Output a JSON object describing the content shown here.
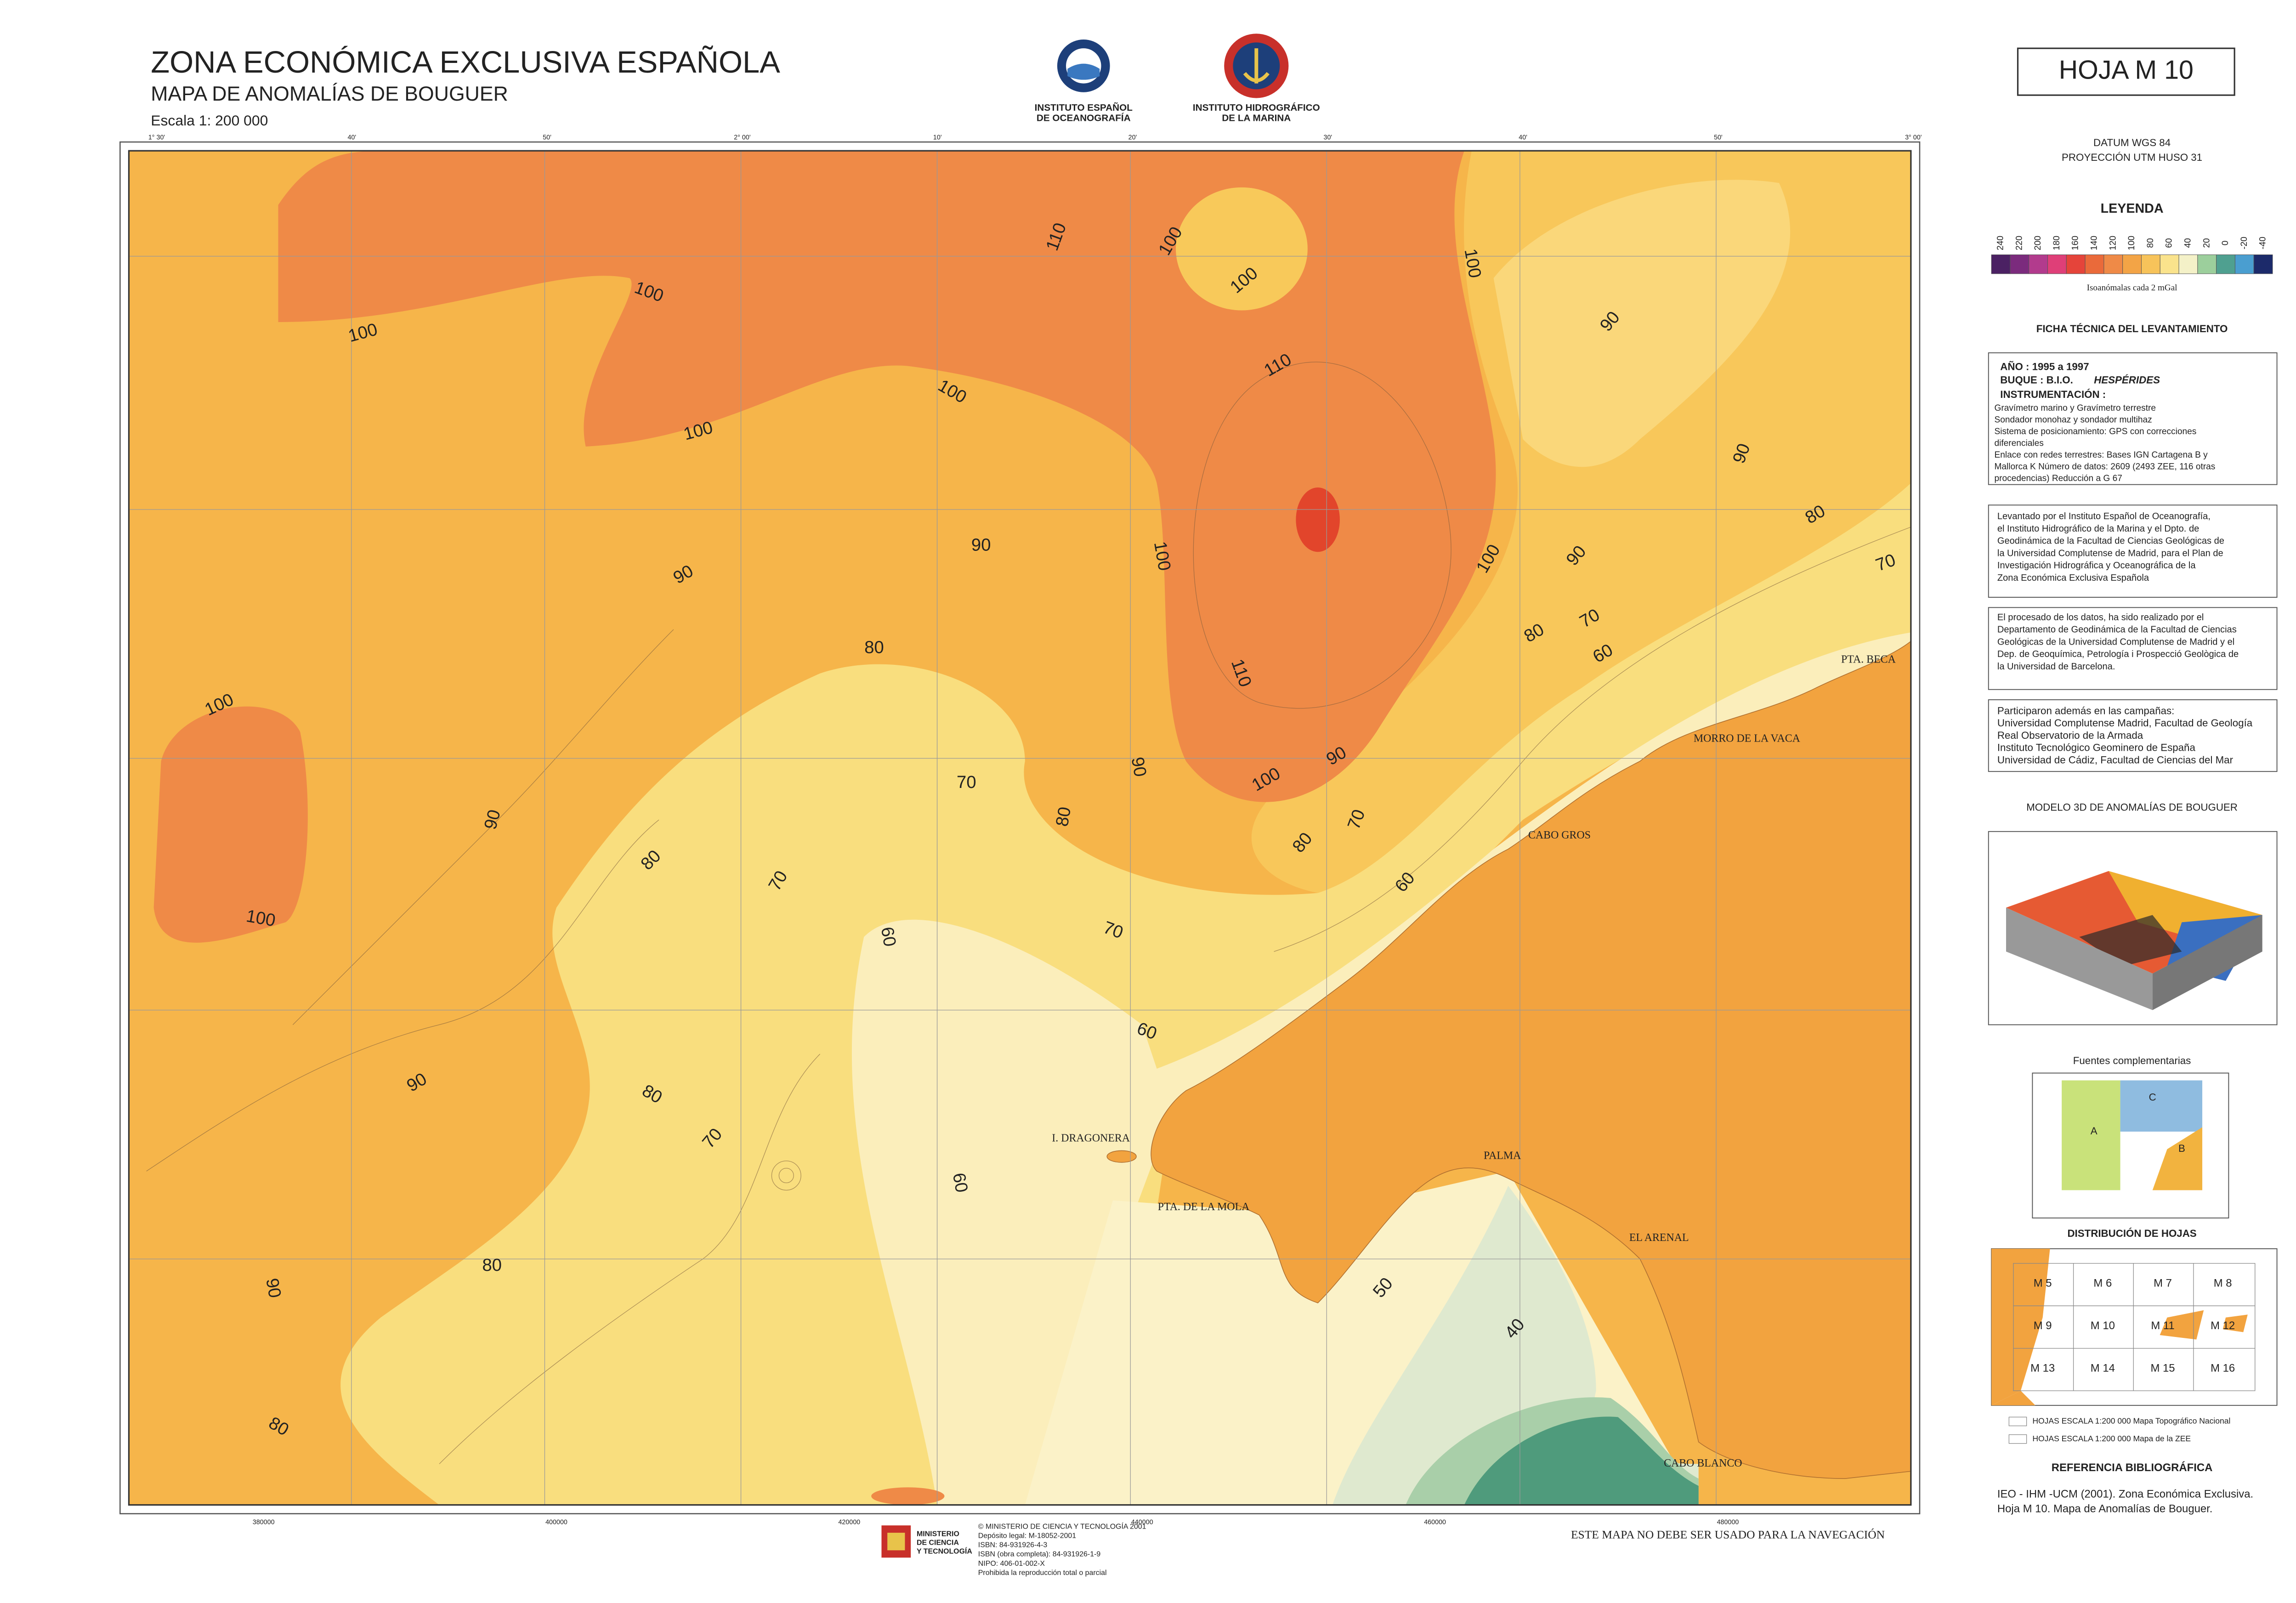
{
  "header": {
    "title": "ZONA ECONÓMICA EXCLUSIVA ESPAÑOLA",
    "subtitle": "MAPA DE ANOMALÍAS DE BOUGUER",
    "scale": "Escala 1: 200 000",
    "institutions": [
      [
        "INSTITUTO ESPAÑOL",
        "DE OCEANOGRAFÍA"
      ],
      [
        "INSTITUTO HIDROGRÁFICO",
        "DE LA MARINA"
      ]
    ]
  },
  "sheet": "HOJA M 10",
  "datum": "DATUM WGS 84",
  "projection": "PROYECCIÓN UTM HUSO 31",
  "legend": {
    "title": "LEYENDA",
    "classes": [
      {
        "label": 240,
        "color": "#4b2163"
      },
      {
        "label": 220,
        "color": "#7b2b7d"
      },
      {
        "label": 200,
        "color": "#b23b8d"
      },
      {
        "label": 180,
        "color": "#df3f78"
      },
      {
        "label": 160,
        "color": "#e5443a"
      },
      {
        "label": 140,
        "color": "#ea6a3a"
      },
      {
        "label": 120,
        "color": "#ef8a47"
      },
      {
        "label": 100,
        "color": "#f3a446"
      },
      {
        "label": 80,
        "color": "#f7c35a"
      },
      {
        "label": 60,
        "color": "#fae38c"
      },
      {
        "label": 40,
        "color": "#f4f1c8"
      },
      {
        "label": 20,
        "color": "#9ccf9c"
      },
      {
        "label": 0,
        "color": "#4fa090"
      },
      {
        "label": -20,
        "color": "#4a9ed0"
      },
      {
        "label": -40,
        "color": "#1c2a6a"
      }
    ],
    "caption": "Isoanómalas cada 2 mGal"
  },
  "tech_sheet": {
    "title": "FICHA TÉCNICA DEL LEVANTAMIENTO",
    "year": "AÑO : 1995 a 1997",
    "vessel_label": "BUQUE : B.I.O.",
    "vessel_name": "HESPÉRIDES",
    "instrumentation": "INSTRUMENTACIÓN :",
    "lines": [
      "Gravímetro marino y Gravímetro terrestre",
      "Sondador monohaz y sondador multihaz",
      "Sistema de posicionamiento: GPS con correcciones",
      "diferenciales",
      "Enlace con redes terrestres: Bases IGN Cartagena B y",
      "Mallorca K Número de datos: 2609 (2493 ZEE, 116 otras",
      "procedencias) Reducción a G 67"
    ],
    "paragraphs": [
      [
        "Levantado por el Instituto Español de Oceanografía,",
        "el Instituto Hidrográfico de la Marina y el Dpto. de",
        "Geodinámica de la Facultad de Ciencias Geológicas de",
        "la Universidad Complutense de Madrid, para el Plan de",
        "Investigación Hidrográfica y Oceanográfica de la",
        "Zona Económica Exclusiva Española"
      ],
      [
        "El  procesado de los datos, ha sido realizado por el",
        "Departamento de Geodinámica de la Facultad de Ciencias",
        "Geológicas de la Universidad Complutense de Madrid y el",
        "Dep. de Geoquímica, Petrología i Prospecció Geològica de",
        "la Universidad de Barcelona."
      ],
      [
        "Participaron además en las campañas:",
        "Universidad Complutense Madrid, Facultad de Geología",
        "Real Observatorio de la Armada",
        "Instituto Tecnológico Geominero de España",
        "Universidad de Cádiz, Facultad de Ciencias del Mar"
      ]
    ]
  },
  "model_3d_title": "MODELO 3D DE ANOMALÍAS DE BOUGUER",
  "sources": {
    "title": "Fuentes complementarias",
    "zones": [
      "A",
      "C",
      "B"
    ]
  },
  "distribution": {
    "title": "DISTRIBUCIÓN DE HOJAS",
    "sheets": [
      "M 5",
      "M 6",
      "M 7",
      "M 8",
      "M 9",
      "M 10",
      "M 11",
      "M 12",
      "M 13",
      "M 14",
      "M 15",
      "M 16"
    ],
    "legend": [
      "HOJAS ESCALA 1:200 000 Mapa Topográfico Nacional",
      "HOJAS ESCALA 1:200 000 Mapa de la ZEE"
    ]
  },
  "reference": {
    "title": "REFERENCIA BIBLIOGRÁFICA",
    "lines": [
      "IEO - IHM -UCM  (2001). Zona Económica Exclusiva.",
      "Hoja M 10. Mapa de Anomalías de Bouguer."
    ]
  },
  "map": {
    "top_ticks": [
      "1° 30'",
      "40'",
      "50'",
      "2° 00'",
      "10'",
      "20'",
      "30'",
      "40'",
      "50'",
      "3° 00'"
    ],
    "bottom_ticks": [
      "380000",
      "400000",
      "420000",
      "440000",
      "460000",
      "480000"
    ],
    "contour_labels": [
      110,
      100,
      100,
      100,
      100,
      100,
      100,
      100,
      110,
      90,
      90,
      80,
      70,
      90,
      100,
      100,
      90,
      90,
      80,
      70,
      80,
      60,
      110,
      100,
      90,
      100,
      90,
      70,
      80,
      70,
      80,
      90,
      80,
      70,
      60,
      100,
      60,
      70,
      60,
      90,
      80,
      70,
      60,
      80,
      90,
      50,
      40,
      80
    ],
    "places": [
      "PTA. BECA",
      "MORRO DE LA VACA",
      "CABO GROS",
      "I. DRAGONERA",
      "PTA. DE LA MOLA",
      "PALMA",
      "EL ARENAL",
      "CABO BLANCO"
    ]
  },
  "footer": {
    "warning": "ESTE MAPA NO DEBE SER USADO PARA LA NAVEGACIÓN",
    "ministry": [
      "MINISTERIO",
      "DE CIENCIA",
      "Y TECNOLOGÍA"
    ],
    "imprint": [
      "© MINISTERIO DE CIENCIA Y TECNOLOGÍA 2001",
      "Depósito legal: M-18052-2001",
      "ISBN: 84-931926-4-3",
      "ISBN (obra completa): 84-931926-1-9",
      "NIPO: 406-01-002-X",
      "Prohibida la reproducción total o parcial"
    ]
  }
}
